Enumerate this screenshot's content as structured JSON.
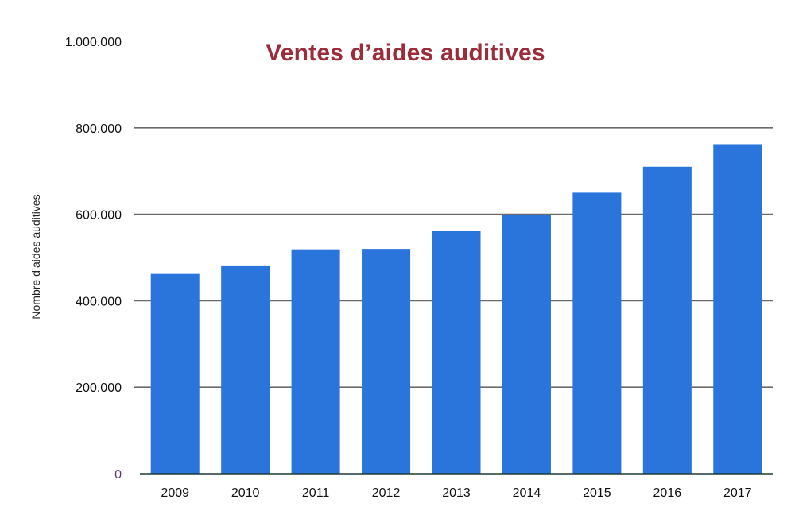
{
  "chart_data": {
    "type": "bar",
    "title": "Ventes d’aides auditives",
    "xlabel": "",
    "ylabel": "Nombre d’aides auditives",
    "categories": [
      "2009",
      "2010",
      "2011",
      "2012",
      "2013",
      "2014",
      "2015",
      "2016",
      "2017"
    ],
    "values": [
      462000,
      480000,
      519000,
      520000,
      561000,
      598000,
      650000,
      710000,
      762000
    ],
    "ylim": [
      0,
      1000000
    ],
    "yticks": [
      0,
      200000,
      400000,
      600000,
      800000,
      1000000
    ],
    "ytick_labels": [
      "0",
      "200.000",
      "400.000",
      "600.000",
      "800.000",
      "1.000.000"
    ],
    "grid": true,
    "legend": "none",
    "bar_color": "#2a75dc",
    "grid_color": "#6b6b6b",
    "title_color": "#9b2d3a"
  }
}
